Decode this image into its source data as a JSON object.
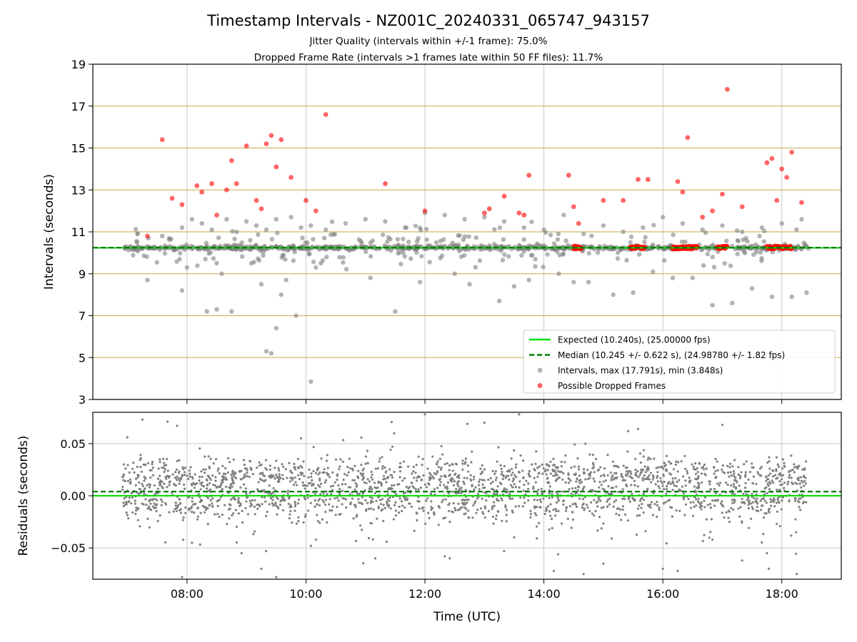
{
  "title": "Timestamp Intervals - NZ001C_20240331_065747_943157",
  "subtitle_lines": [
    "Jitter Quality (intervals within +/-1 frame): 75.0%",
    "Dropped Frame Rate (intervals >1 frames late within 50 FF files): 11.7%"
  ],
  "colors": {
    "expected": "#00e000",
    "median": "#007a00",
    "interval_points": "#808080",
    "dropped_points": "#ff0000",
    "frame_lines": "#d4b86a",
    "grid": "#c8c8c8"
  },
  "chart_data": [
    {
      "type": "scatter",
      "panel": "top",
      "ylabel": "Intervals (seconds)",
      "xlim": [
        "06:25",
        "19:00"
      ],
      "ylim": [
        3,
        19
      ],
      "yticks": [
        3,
        5,
        7,
        9,
        11,
        13,
        15,
        17,
        19
      ],
      "xticks": [
        "08:00",
        "10:00",
        "12:00",
        "14:00",
        "16:00",
        "18:00"
      ],
      "grid": true,
      "frame_reference_lines": [
        3.0,
        5.0,
        7.0,
        9.0,
        11.0,
        13.0,
        15.0,
        17.0
      ],
      "expected_value": 10.24,
      "median_value": 10.245,
      "legend_position": "lower-right",
      "legend": [
        {
          "key": "expected",
          "label": "Expected (10.240s), (25.00000 fps)",
          "style": "line"
        },
        {
          "key": "median",
          "label": "Median (10.245 +/- 0.622 s), (24.98780 +/- 1.82 fps)",
          "style": "dashed"
        },
        {
          "key": "intervals",
          "label": "Intervals, max (17.791s), min (3.848s)",
          "style": "point"
        },
        {
          "key": "dropped",
          "label": "Possible Dropped Frames",
          "style": "point"
        }
      ],
      "series": [
        {
          "key": "intervals",
          "x": [
            "07:10",
            "07:35",
            "07:55",
            "08:05",
            "08:15",
            "08:25",
            "08:40",
            "08:50",
            "09:00",
            "09:10",
            "09:20",
            "09:30",
            "09:45",
            "09:55",
            "10:05",
            "10:20",
            "10:40",
            "11:00",
            "11:20",
            "11:40",
            "12:00",
            "12:20",
            "12:40",
            "13:00",
            "13:20",
            "13:40",
            "14:00",
            "14:20",
            "14:40",
            "15:00",
            "15:20",
            "15:40",
            "16:00",
            "16:20",
            "16:40",
            "17:00",
            "17:20",
            "17:40",
            "18:00",
            "18:20",
            "07:55",
            "08:20",
            "08:45",
            "09:15",
            "09:35",
            "10:10",
            "11:30",
            "12:30",
            "13:30",
            "14:30",
            "15:10",
            "15:50",
            "16:30",
            "17:10",
            "17:50",
            "18:25",
            "07:20",
            "08:00",
            "08:35",
            "09:05",
            "09:40",
            "09:50",
            "10:15",
            "11:05",
            "11:55",
            "12:45",
            "13:15",
            "13:45",
            "14:15",
            "14:45",
            "15:30",
            "16:10",
            "16:50",
            "17:30",
            "18:10",
            "08:30",
            "09:25",
            "09:30",
            "09:20",
            "10:05"
          ],
          "y": [
            10.9,
            10.8,
            11.2,
            11.6,
            11.4,
            11.1,
            11.6,
            11.0,
            11.5,
            11.3,
            11.1,
            11.6,
            11.7,
            11.2,
            11.3,
            11.1,
            11.4,
            11.6,
            11.5,
            11.2,
            11.9,
            11.8,
            11.6,
            11.7,
            11.5,
            11.2,
            11.1,
            11.8,
            10.9,
            11.3,
            11.0,
            11.2,
            11.7,
            11.4,
            11.1,
            11.3,
            11.0,
            11.2,
            11.4,
            11.6,
            8.2,
            7.2,
            7.2,
            8.5,
            8.0,
            9.3,
            7.2,
            9.0,
            8.4,
            8.6,
            8.0,
            9.1,
            8.8,
            7.6,
            7.9,
            8.1,
            8.7,
            9.3,
            9.0,
            9.5,
            8.7,
            7.0,
            9.5,
            8.8,
            8.6,
            8.5,
            7.7,
            8.7,
            9.0,
            8.6,
            8.1,
            8.8,
            7.5,
            8.3,
            7.9,
            7.3,
            5.2,
            6.4,
            5.3,
            3.85
          ]
        },
        {
          "key": "dropped",
          "x": [
            "07:20",
            "07:35",
            "07:45",
            "07:55",
            "08:10",
            "08:15",
            "08:25",
            "08:30",
            "08:40",
            "08:45",
            "08:50",
            "09:00",
            "09:10",
            "09:15",
            "09:20",
            "09:25",
            "09:30",
            "09:35",
            "09:45",
            "10:00",
            "10:10",
            "10:20",
            "11:20",
            "12:00",
            "13:00",
            "13:05",
            "13:20",
            "13:35",
            "13:40",
            "13:45",
            "14:25",
            "14:30",
            "14:35",
            "15:00",
            "15:20",
            "15:35",
            "15:45",
            "16:15",
            "16:20",
            "16:25",
            "16:40",
            "16:50",
            "17:00",
            "17:05",
            "17:20",
            "17:45",
            "17:50",
            "17:55",
            "18:00",
            "18:05",
            "18:10",
            "18:20"
          ],
          "y": [
            10.8,
            15.4,
            12.6,
            12.3,
            13.2,
            12.9,
            13.3,
            11.8,
            13.0,
            14.4,
            13.3,
            15.1,
            12.5,
            12.1,
            15.2,
            15.6,
            14.1,
            15.4,
            13.6,
            12.5,
            12.0,
            16.6,
            13.3,
            12.0,
            11.9,
            12.1,
            12.7,
            11.9,
            11.8,
            13.7,
            13.7,
            12.2,
            11.4,
            12.5,
            12.5,
            13.5,
            13.5,
            13.4,
            12.9,
            15.5,
            11.7,
            12.0,
            12.8,
            17.8,
            12.2,
            14.3,
            14.5,
            12.5,
            14.0,
            13.6,
            14.8,
            12.4
          ]
        },
        {
          "key": "dropped-clusters",
          "x_ranges": [
            [
              "14:30",
              "14:38"
            ],
            [
              "15:27",
              "15:42"
            ],
            [
              "16:10",
              "16:35"
            ],
            [
              "16:55",
              "17:05"
            ],
            [
              "17:45",
              "18:10"
            ]
          ],
          "y": 10.25
        }
      ]
    },
    {
      "type": "scatter",
      "panel": "bottom",
      "xlabel": "Time (UTC)",
      "ylabel": "Residuals (seconds)",
      "xlim": [
        "06:25",
        "19:00"
      ],
      "ylim": [
        -0.08,
        0.08
      ],
      "yticks": [
        0.05,
        0.0,
        -0.05
      ],
      "ytick_labels": [
        "0.05",
        "0.00",
        "−0.05"
      ],
      "xticks": [
        "08:00",
        "10:00",
        "12:00",
        "14:00",
        "16:00",
        "18:00"
      ],
      "grid": true,
      "expected_value": 0.0,
      "median_value": 0.004,
      "residual_points_range": [
        "06:55",
        "18:25"
      ],
      "residual_points": {
        "x": [
          "07:15",
          "07:50",
          "07:55",
          "08:05",
          "08:55",
          "09:15",
          "09:30",
          "09:55",
          "10:05",
          "10:10",
          "11:10",
          "12:00",
          "12:20",
          "12:25",
          "13:00",
          "13:35",
          "14:10",
          "14:40",
          "15:00",
          "15:25",
          "15:35",
          "16:00",
          "16:15",
          "16:50",
          "17:00",
          "17:20",
          "17:45",
          "18:15"
        ],
        "y": [
          0.073,
          0.067,
          -0.078,
          -0.045,
          -0.055,
          -0.07,
          -0.078,
          0.055,
          -0.048,
          -0.042,
          -0.06,
          0.078,
          -0.058,
          -0.06,
          0.07,
          0.078,
          -0.072,
          -0.075,
          -0.065,
          0.062,
          0.064,
          -0.07,
          -0.072,
          -0.042,
          0.068,
          -0.062,
          -0.055,
          -0.075
        ]
      }
    }
  ]
}
